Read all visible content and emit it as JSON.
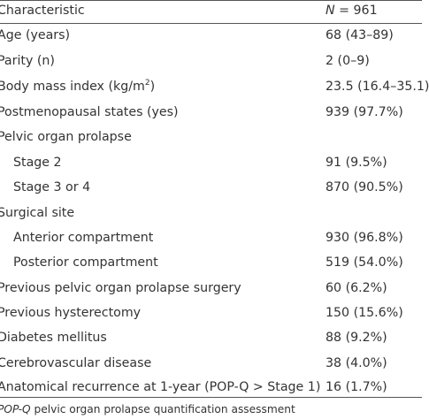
{
  "header": {
    "characteristic_label": "Characteristic",
    "n_symbol": "N",
    "n_value": " = 961"
  },
  "rows": [
    {
      "label": "Age (years)",
      "value": "68 (43–89)"
    },
    {
      "label": "Parity (n)",
      "value": "2 (0–9)"
    },
    {
      "label": "Body mass index (kg/m",
      "label_sup": "2",
      "label_tail": ")",
      "value": "23.5 (16.4–35.1)"
    },
    {
      "label": "Postmenopausal states (yes)",
      "value": "939 (97.7%)"
    },
    {
      "label": "Pelvic organ prolapse",
      "value": ""
    },
    {
      "label": "Stage 2",
      "value": "91 (9.5%)"
    },
    {
      "label": "Stage 3 or 4",
      "value": "870 (90.5%)"
    },
    {
      "label": "Surgical site",
      "value": ""
    },
    {
      "label": "Anterior compartment",
      "value": "930 (96.8%)"
    },
    {
      "label": "Posterior compartment",
      "value": "519 (54.0%)"
    },
    {
      "label": "Previous pelvic organ prolapse surgery",
      "value": "60 (6.2%)"
    },
    {
      "label": "Previous hysterectomy",
      "value": "150 (15.6%)"
    },
    {
      "label": "Diabetes mellitus",
      "value": "88 (9.2%)"
    },
    {
      "label": "Cerebrovascular disease",
      "value": "38 (4.0%)"
    },
    {
      "label": "Anatomical recurrence at 1-year (POP-Q > Stage 1)",
      "value": "16 (1.7%)"
    }
  ],
  "footnote": {
    "abbreviation": "POP-Q",
    "definition": " pelvic organ prolapse quantification assessment"
  }
}
